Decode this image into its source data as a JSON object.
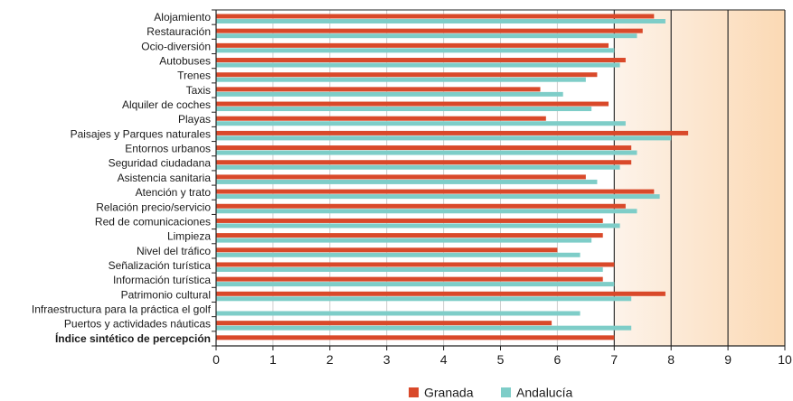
{
  "chart_data": {
    "type": "bar",
    "orientation": "horizontal",
    "categories": [
      "Alojamiento",
      "Restauración",
      "Ocio-diversión",
      "Autobuses",
      "Trenes",
      "Taxis",
      "Alquiler de coches",
      "Playas",
      "Paisajes y Parques naturales",
      "Entornos urbanos",
      "Seguridad ciudadana",
      "Asistencia sanitaria",
      "Atención y trato",
      "Relación precio/servicio",
      "Red de comunicaciones",
      "Limpieza",
      "Nivel del tráfico",
      "Señalización turística",
      "Información turística",
      "Patrimonio cultural",
      "Infraestructura para la práctica el golf",
      "Puertos y actividades náuticas",
      "Índice sintético de percepción"
    ],
    "bold_category": "Índice sintético de percepción",
    "series": [
      {
        "name": "Granada",
        "color": "#d9492a",
        "values": [
          7.7,
          7.5,
          6.9,
          7.2,
          6.7,
          5.7,
          6.9,
          5.8,
          8.3,
          7.3,
          7.3,
          6.5,
          7.7,
          7.2,
          6.8,
          6.8,
          6.0,
          7.0,
          6.8,
          7.9,
          null,
          5.9,
          7.0
        ]
      },
      {
        "name": "Andalucía",
        "color": "#7ecdc8",
        "values": [
          7.9,
          7.4,
          7.0,
          7.1,
          6.5,
          6.1,
          6.6,
          7.2,
          8.0,
          7.4,
          7.1,
          6.7,
          7.8,
          7.4,
          7.1,
          6.6,
          6.4,
          6.8,
          7.0,
          7.3,
          6.4,
          7.3,
          null
        ]
      }
    ],
    "xlim": [
      0,
      10
    ],
    "xticks": [
      "0",
      "1",
      "2",
      "3",
      "4",
      "5",
      "6",
      "7",
      "8",
      "9",
      "10"
    ],
    "highlight_band": {
      "from": 7,
      "to": 10,
      "color_start": "#fdf3ea",
      "color_end": "#fbd9b4"
    },
    "grid": "vertical lines at integer values",
    "legend_position": "bottom-center"
  }
}
